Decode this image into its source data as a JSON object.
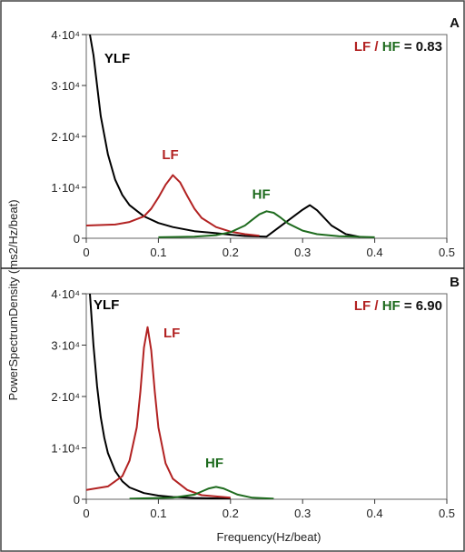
{
  "colors": {
    "lf": "#b22222",
    "hf": "#1e6b1e",
    "ylf": "#000000",
    "text": "#222222",
    "frame": "#666666"
  },
  "shared": {
    "ylabel": "PowerSpectrumDensity (ms2/Hz/beat)",
    "xlabel": "Frequency(Hz/beat)"
  },
  "chart_data": [
    {
      "panel": "A",
      "type": "line",
      "xlim": [
        0,
        0.5
      ],
      "ylim": [
        0,
        40000
      ],
      "xticks": [
        "0",
        "0.1",
        "0.2",
        "0.3",
        "0.4",
        "0.5"
      ],
      "yticks": [
        "0",
        "1·10⁴",
        "2·10⁴",
        "3·10⁴",
        "4·10⁴"
      ],
      "ratio": {
        "lf": "LF",
        "sep": " / ",
        "hf": "HF",
        "value": " = 0.83"
      },
      "series": [
        {
          "name": "YLF",
          "color": "ylf",
          "x": [
            0.005,
            0.01,
            0.015,
            0.02,
            0.03,
            0.04,
            0.05,
            0.06,
            0.08,
            0.1,
            0.12,
            0.15,
            0.18,
            0.2,
            0.22,
            0.25,
            0.28,
            0.3,
            0.31,
            0.32,
            0.34,
            0.36,
            0.38
          ],
          "y": [
            40000,
            36000,
            30000,
            24000,
            16500,
            11500,
            8500,
            6500,
            4300,
            3000,
            2200,
            1400,
            1000,
            700,
            450,
            320,
            3500,
            5600,
            6500,
            5500,
            2500,
            800,
            250
          ]
        },
        {
          "name": "LF",
          "color": "lf",
          "x": [
            0,
            0.04,
            0.06,
            0.08,
            0.09,
            0.1,
            0.11,
            0.12,
            0.13,
            0.14,
            0.15,
            0.16,
            0.18,
            0.2,
            0.22,
            0.24
          ],
          "y": [
            2500,
            2700,
            3200,
            4300,
            5800,
            8000,
            10500,
            12400,
            11000,
            8300,
            5800,
            4000,
            2200,
            1300,
            800,
            500
          ]
        },
        {
          "name": "HF",
          "color": "hf",
          "x": [
            0.1,
            0.15,
            0.18,
            0.2,
            0.22,
            0.23,
            0.24,
            0.25,
            0.26,
            0.27,
            0.28,
            0.3,
            0.32,
            0.35,
            0.4
          ],
          "y": [
            200,
            300,
            600,
            1200,
            2500,
            3600,
            4700,
            5300,
            5000,
            4000,
            2900,
            1500,
            800,
            400,
            200
          ]
        }
      ],
      "labels": [
        {
          "text": "YLF",
          "series": "ylf",
          "x": 0.025,
          "y": 34500
        },
        {
          "text": "LF",
          "series": "lf",
          "x": 0.105,
          "y": 15500
        },
        {
          "text": "HF",
          "series": "hf",
          "x": 0.23,
          "y": 7800
        }
      ],
      "corner": "A"
    },
    {
      "panel": "B",
      "type": "line",
      "xlim": [
        0,
        0.5
      ],
      "ylim": [
        0,
        40000
      ],
      "xticks": [
        "0",
        "0.1",
        "0.2",
        "0.3",
        "0.4",
        "0.5"
      ],
      "yticks": [
        "0",
        "1·10⁴",
        "2·10⁴",
        "3·10⁴",
        "4·10⁴"
      ],
      "ratio": {
        "lf": "LF",
        "sep": " / ",
        "hf": "HF",
        "value": " = 6.90"
      },
      "series": [
        {
          "name": "YLF",
          "color": "ylf",
          "x": [
            0.005,
            0.01,
            0.015,
            0.02,
            0.025,
            0.03,
            0.04,
            0.05,
            0.06,
            0.08,
            0.1,
            0.12,
            0.15,
            0.2
          ],
          "y": [
            40000,
            30000,
            22000,
            16000,
            12000,
            9000,
            5500,
            3500,
            2300,
            1200,
            700,
            450,
            250,
            100
          ]
        },
        {
          "name": "LF",
          "color": "lf",
          "x": [
            0,
            0.03,
            0.05,
            0.06,
            0.07,
            0.075,
            0.08,
            0.085,
            0.09,
            0.095,
            0.1,
            0.11,
            0.12,
            0.14,
            0.16,
            0.2
          ],
          "y": [
            1800,
            2500,
            4500,
            7500,
            14000,
            21000,
            29500,
            33500,
            29000,
            21000,
            14000,
            7000,
            4000,
            1800,
            800,
            300
          ]
        },
        {
          "name": "HF",
          "color": "hf",
          "x": [
            0.06,
            0.12,
            0.15,
            0.16,
            0.17,
            0.18,
            0.19,
            0.2,
            0.21,
            0.23,
            0.26
          ],
          "y": [
            100,
            300,
            900,
            1500,
            2100,
            2400,
            2100,
            1500,
            900,
            300,
            100
          ]
        }
      ],
      "labels": [
        {
          "text": "YLF",
          "series": "ylf",
          "x": 0.01,
          "y": 37000
        },
        {
          "text": "LF",
          "series": "lf",
          "x": 0.107,
          "y": 31500
        },
        {
          "text": "HF",
          "series": "hf",
          "x": 0.165,
          "y": 6200
        }
      ],
      "corner": "B"
    }
  ]
}
